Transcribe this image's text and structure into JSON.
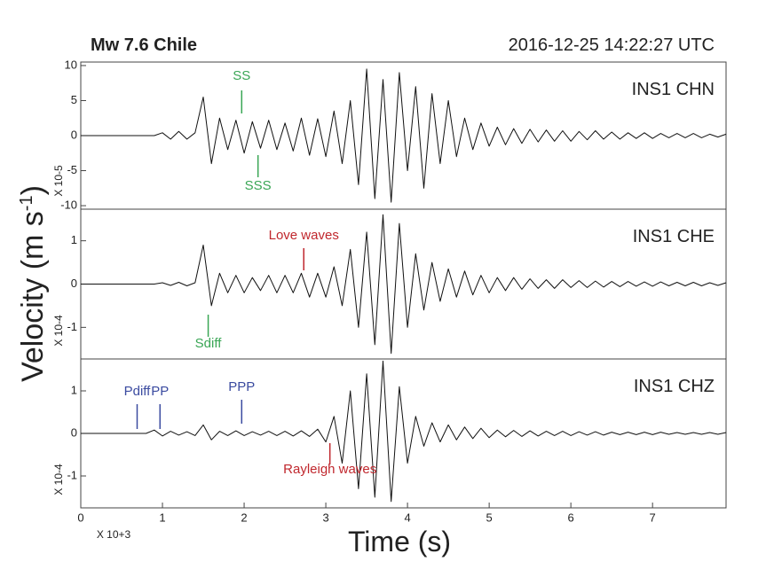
{
  "figure": {
    "title": "Mw 7.6 Chile",
    "datetime": "2016-12-25  14:22:27 UTC",
    "ylabel": {
      "text": "Velocity (m s",
      "superscript": "-1",
      "suffix": ")"
    }
  },
  "chart_data": [
    {
      "type": "line",
      "label": "INS1 CHN",
      "multiplier": "X 10-5",
      "color": "#111111",
      "xlim": [
        0,
        7.9
      ],
      "ylim": [
        -10.5,
        10.5
      ],
      "yticks": [
        -10,
        -5,
        0,
        5,
        10
      ],
      "x": [
        0,
        0.1,
        0.2,
        0.3,
        0.4,
        0.5,
        0.6,
        0.7,
        0.8,
        0.9,
        1,
        1.1,
        1.2,
        1.3,
        1.4,
        1.5,
        1.6,
        1.7,
        1.8,
        1.9,
        2,
        2.1,
        2.2,
        2.3,
        2.4,
        2.5,
        2.6,
        2.7,
        2.8,
        2.9,
        3,
        3.1,
        3.2,
        3.3,
        3.4,
        3.5,
        3.6,
        3.7,
        3.8,
        3.9,
        4,
        4.1,
        4.2,
        4.3,
        4.4,
        4.5,
        4.6,
        4.7,
        4.8,
        4.9,
        5,
        5.1,
        5.2,
        5.3,
        5.4,
        5.5,
        5.6,
        5.7,
        5.8,
        5.9,
        6,
        6.1,
        6.2,
        6.3,
        6.4,
        6.5,
        6.6,
        6.7,
        6.8,
        6.9,
        7,
        7.1,
        7.2,
        7.3,
        7.4,
        7.5,
        7.6,
        7.7,
        7.8,
        7.9
      ],
      "values": [
        0,
        0,
        0,
        0,
        0,
        0,
        0,
        0,
        0,
        0,
        0.4,
        -0.5,
        0.6,
        -0.5,
        0.4,
        5.5,
        -4,
        2.5,
        -2,
        2.2,
        -2.5,
        2,
        -1.8,
        2.2,
        -2,
        1.8,
        -2.2,
        2.5,
        -2.8,
        2.4,
        -3,
        3.5,
        -4,
        5,
        -7,
        9.5,
        -9,
        8,
        -9.5,
        9,
        -5,
        7,
        -7.5,
        6,
        -4,
        5,
        -3,
        2.5,
        -2,
        1.8,
        -1.5,
        1.2,
        -1.3,
        1,
        -1.1,
        0.9,
        -0.9,
        0.8,
        -0.8,
        0.7,
        -0.8,
        0.6,
        -0.6,
        0.7,
        -0.5,
        0.5,
        -0.5,
        0.4,
        -0.4,
        0.4,
        -0.4,
        0.3,
        -0.3,
        0.3,
        -0.3,
        0.3,
        -0.3,
        0.2,
        -0.2,
        0.2
      ],
      "annotations": [
        {
          "text": "SS",
          "x": 1.97,
          "color": "#3aa655"
        },
        {
          "text": "SSS",
          "x": 2.17,
          "color": "#3aa655"
        }
      ]
    },
    {
      "type": "line",
      "label": "INS1 CHE",
      "multiplier": "X 10-4",
      "color": "#111111",
      "xlim": [
        0,
        7.9
      ],
      "ylim": [
        -1.73,
        1.73
      ],
      "yticks": [
        -1,
        0,
        1
      ],
      "x": [
        0,
        0.1,
        0.2,
        0.3,
        0.4,
        0.5,
        0.6,
        0.7,
        0.8,
        0.9,
        1,
        1.1,
        1.2,
        1.3,
        1.4,
        1.5,
        1.6,
        1.7,
        1.8,
        1.9,
        2,
        2.1,
        2.2,
        2.3,
        2.4,
        2.5,
        2.6,
        2.7,
        2.8,
        2.9,
        3,
        3.1,
        3.2,
        3.3,
        3.4,
        3.5,
        3.6,
        3.7,
        3.8,
        3.9,
        4,
        4.1,
        4.2,
        4.3,
        4.4,
        4.5,
        4.6,
        4.7,
        4.8,
        4.9,
        5,
        5.1,
        5.2,
        5.3,
        5.4,
        5.5,
        5.6,
        5.7,
        5.8,
        5.9,
        6,
        6.1,
        6.2,
        6.3,
        6.4,
        6.5,
        6.6,
        6.7,
        6.8,
        6.9,
        7,
        7.1,
        7.2,
        7.3,
        7.4,
        7.5,
        7.6,
        7.7,
        7.8,
        7.9
      ],
      "values": [
        0,
        0,
        0,
        0,
        0,
        0,
        0,
        0,
        0,
        0,
        0.03,
        -0.03,
        0.04,
        -0.04,
        0.03,
        0.9,
        -0.5,
        0.25,
        -0.2,
        0.2,
        -0.2,
        0.15,
        -0.15,
        0.2,
        -0.2,
        0.2,
        -0.2,
        0.25,
        -0.3,
        0.25,
        -0.3,
        0.4,
        -0.5,
        0.8,
        -1.0,
        1.2,
        -1.4,
        1.6,
        -1.6,
        1.4,
        -1.0,
        0.7,
        -0.6,
        0.5,
        -0.4,
        0.35,
        -0.3,
        0.3,
        -0.25,
        0.2,
        -0.2,
        0.15,
        -0.15,
        0.15,
        -0.12,
        0.12,
        -0.1,
        0.1,
        -0.1,
        0.1,
        -0.08,
        0.08,
        -0.08,
        0.07,
        -0.07,
        0.06,
        -0.06,
        0.06,
        -0.05,
        0.05,
        -0.05,
        0.05,
        -0.04,
        0.04,
        -0.04,
        0.04,
        -0.04,
        0.03,
        -0.03,
        0.03
      ],
      "annotations": [
        {
          "text": "Love waves",
          "x": 2.73,
          "color": "#c0272d"
        },
        {
          "text": "Sdiff",
          "x": 1.56,
          "color": "#3aa655"
        }
      ]
    },
    {
      "type": "line",
      "label": "INS1 CHZ",
      "multiplier": "X 10-4",
      "color": "#111111",
      "xlim": [
        0,
        7.9
      ],
      "ylim": [
        -1.75,
        1.75
      ],
      "yticks": [
        -1,
        0,
        1
      ],
      "xticks": [
        0,
        1,
        2,
        3,
        4,
        5,
        6,
        7
      ],
      "xlabel": "Time (s)",
      "xmultiplier": "X 10+3",
      "x": [
        0,
        0.1,
        0.2,
        0.3,
        0.4,
        0.5,
        0.6,
        0.7,
        0.8,
        0.9,
        1,
        1.1,
        1.2,
        1.3,
        1.4,
        1.5,
        1.6,
        1.7,
        1.8,
        1.9,
        2,
        2.1,
        2.2,
        2.3,
        2.4,
        2.5,
        2.6,
        2.7,
        2.8,
        2.9,
        3,
        3.1,
        3.2,
        3.3,
        3.4,
        3.5,
        3.6,
        3.7,
        3.8,
        3.9,
        4,
        4.1,
        4.2,
        4.3,
        4.4,
        4.5,
        4.6,
        4.7,
        4.8,
        4.9,
        5,
        5.1,
        5.2,
        5.3,
        5.4,
        5.5,
        5.6,
        5.7,
        5.8,
        5.9,
        6,
        6.1,
        6.2,
        6.3,
        6.4,
        6.5,
        6.6,
        6.7,
        6.8,
        6.9,
        7,
        7.1,
        7.2,
        7.3,
        7.4,
        7.5,
        7.6,
        7.7,
        7.8,
        7.9
      ],
      "values": [
        0,
        0,
        0,
        0,
        0,
        0,
        0,
        0,
        0,
        0.08,
        -0.06,
        0.05,
        -0.04,
        0.04,
        -0.05,
        0.2,
        -0.15,
        0.05,
        -0.05,
        0.06,
        -0.05,
        0.04,
        -0.04,
        0.05,
        -0.05,
        0.05,
        -0.06,
        0.06,
        -0.07,
        0.1,
        -0.2,
        0.4,
        -0.7,
        1.0,
        -1.3,
        1.4,
        -1.5,
        1.7,
        -1.6,
        1.1,
        -0.7,
        0.4,
        -0.3,
        0.25,
        -0.2,
        0.2,
        -0.15,
        0.15,
        -0.12,
        0.12,
        -0.1,
        0.08,
        -0.08,
        0.07,
        -0.07,
        0.06,
        -0.06,
        0.05,
        -0.05,
        0.05,
        -0.05,
        0.04,
        -0.04,
        0.04,
        -0.04,
        0.03,
        -0.03,
        0.03,
        -0.03,
        0.03,
        -0.03,
        0.03,
        -0.02,
        0.02,
        -0.02,
        0.02,
        -0.02,
        0.02,
        -0.02,
        0.02
      ],
      "annotations": [
        {
          "text": "Pdiff",
          "x": 0.69,
          "color": "#3b4ba0"
        },
        {
          "text": "PP",
          "x": 0.97,
          "color": "#3b4ba0"
        },
        {
          "text": "PPP",
          "x": 1.97,
          "color": "#3b4ba0"
        },
        {
          "text": "Rayleigh waves",
          "x": 3.05,
          "color": "#c0272d"
        }
      ]
    }
  ]
}
